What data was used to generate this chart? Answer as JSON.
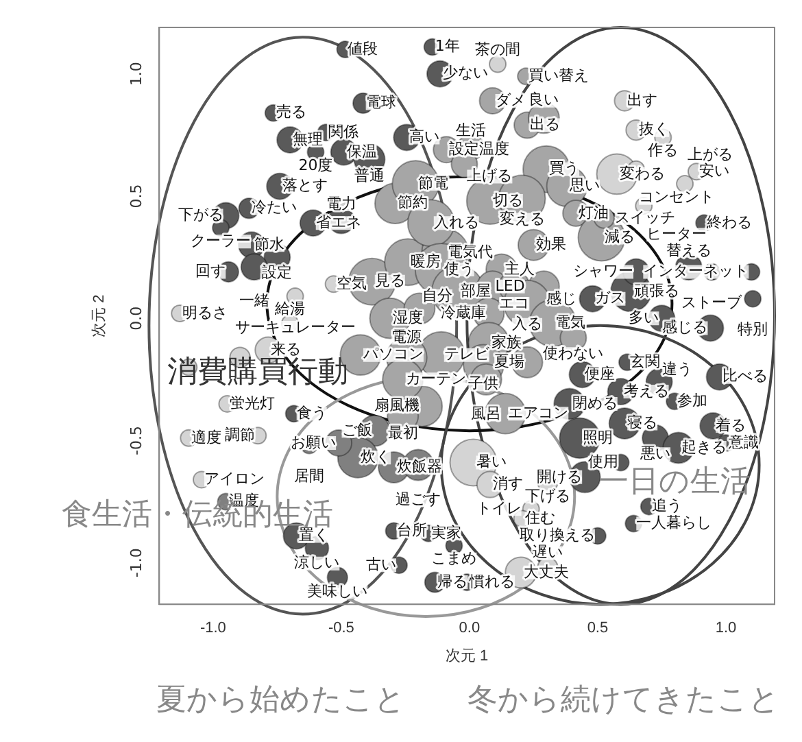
{
  "chart_data": {
    "type": "bubble",
    "xlabel": "次元 1",
    "ylabel": "次元 2",
    "xlim": [
      -1.21,
      1.19
    ],
    "ylim": [
      -1.17,
      1.19
    ],
    "xticks": [
      {
        "value": -1,
        "label": "-1.0"
      },
      {
        "value": -0.5,
        "label": "-0.5"
      },
      {
        "value": 0,
        "label": "0.0"
      },
      {
        "value": 0.5,
        "label": "0.5"
      },
      {
        "value": 1,
        "label": "1.0"
      }
    ],
    "yticks": [
      {
        "value": -1,
        "label": "-1.0"
      },
      {
        "value": -0.5,
        "label": "-0.5"
      },
      {
        "value": 0,
        "label": "0.0"
      },
      {
        "value": 0.5,
        "label": "0.5"
      },
      {
        "value": 1,
        "label": "1.0"
      }
    ],
    "annotations": [
      "消費購買行動",
      "食生活・伝統的生活",
      "一日の生活",
      "夏から始めたこと",
      "冬から続けてきたこと",
      {
        "text": "値段",
        "x": -0.485,
        "y": 1.1
      },
      {
        "text": "売る",
        "x": -0.765,
        "y": 0.84
      },
      {
        "text": "電球",
        "x": -0.415,
        "y": 0.88
      },
      {
        "text": "無理",
        "x": -0.7,
        "y": 0.73
      },
      {
        "text": "関係",
        "x": -0.56,
        "y": 0.76
      },
      {
        "text": "高い",
        "x": -0.245,
        "y": 0.74
      },
      {
        "text": "20度",
        "x": -0.6,
        "y": 0.68
      },
      {
        "text": "保温",
        "x": -0.49,
        "y": 0.68
      },
      {
        "text": "普通",
        "x": -0.39,
        "y": 0.65
      },
      {
        "text": "落とす",
        "x": -0.74,
        "y": 0.54
      },
      {
        "text": "冷たい",
        "x": -0.86,
        "y": 0.45
      },
      {
        "text": "下がる",
        "x": -0.95,
        "y": 0.42
      },
      {
        "text": "クーラー",
        "x": -0.97,
        "y": 0.37
      },
      {
        "text": "省エネ",
        "x": -0.61,
        "y": 0.39
      },
      {
        "text": "電力",
        "x": -0.5,
        "y": 0.4
      },
      {
        "text": "節水",
        "x": -0.85,
        "y": 0.3
      },
      {
        "text": "設定",
        "x": -0.75,
        "y": 0.25
      },
      {
        "text": "回す",
        "x": -0.94,
        "y": 0.19
      },
      {
        "text": "一緒",
        "x": -0.84,
        "y": 0.21
      },
      {
        "text": "1年",
        "x": -0.145,
        "y": 1.11
      },
      {
        "text": "少ない",
        "x": -0.115,
        "y": 1.0
      },
      {
        "text": "終わる",
        "x": 0.915,
        "y": 0.39
      },
      {
        "text": "インターネット",
        "x": 1.1,
        "y": 0.19
      },
      {
        "text": "替える",
        "x": 0.855,
        "y": 0.21
      },
      {
        "text": "ストーブ",
        "x": 0.945,
        "y": 0.19
      },
      {
        "text": "特別",
        "x": 1.105,
        "y": 0.08
      },
      {
        "text": "頑張る",
        "x": 0.63,
        "y": 0.11
      },
      {
        "text": "ガス",
        "x": 0.48,
        "y": 0.08
      },
      {
        "text": "シャワー",
        "x": 0.65,
        "y": 0.19
      },
      {
        "text": "多い",
        "x": 0.75,
        "y": 0.0
      },
      {
        "text": "感じる",
        "x": 0.94,
        "y": -0.04
      },
      {
        "text": "便座",
        "x": 0.44,
        "y": -0.23
      },
      {
        "text": "玄関",
        "x": 0.615,
        "y": -0.18
      },
      {
        "text": "考える",
        "x": 0.59,
        "y": -0.3
      },
      {
        "text": "違う",
        "x": 0.74,
        "y": -0.26
      },
      {
        "text": "比べる",
        "x": 0.975,
        "y": -0.24
      },
      {
        "text": "閉める",
        "x": 0.39,
        "y": -0.35
      },
      {
        "text": "寝る",
        "x": 0.605,
        "y": -0.43
      },
      {
        "text": "参加",
        "x": 0.8,
        "y": -0.34
      },
      {
        "text": "照明",
        "x": 0.43,
        "y": -0.49
      },
      {
        "text": "悪い",
        "x": 0.725,
        "y": -0.49
      },
      {
        "text": "着る",
        "x": 0.95,
        "y": -0.44
      },
      {
        "text": "起きる",
        "x": 0.815,
        "y": -0.53
      },
      {
        "text": "意識",
        "x": 1.0,
        "y": -0.51
      },
      {
        "text": "使用",
        "x": 0.59,
        "y": -0.59
      },
      {
        "text": "開ける",
        "x": 0.45,
        "y": -0.65
      },
      {
        "text": "追う",
        "x": 0.7,
        "y": -0.77
      },
      {
        "text": "一人暮らし",
        "x": 0.64,
        "y": -0.84
      },
      {
        "text": "取り換える",
        "x": 0.5,
        "y": -0.89
      },
      {
        "text": "実家",
        "x": -0.16,
        "y": -0.88
      },
      {
        "text": "こまめ",
        "x": -0.06,
        "y": -0.93
      },
      {
        "text": "古い",
        "x": -0.275,
        "y": -1.01
      },
      {
        "text": "帰る",
        "x": -0.135,
        "y": -1.08
      },
      {
        "text": "慣れる",
        "x": -0.01,
        "y": -1.08
      },
      {
        "text": "食う",
        "x": -0.685,
        "y": -0.39
      },
      {
        "text": "置く",
        "x": -0.675,
        "y": -0.89
      },
      {
        "text": "涼しい",
        "x": -0.595,
        "y": -0.94
      },
      {
        "text": "美味しい",
        "x": -0.515,
        "y": -1.06
      },
      {
        "text": "台所",
        "x": -0.295,
        "y": -0.87
      },
      {
        "text": "節約",
        "x": -0.29,
        "y": 0.47
      },
      {
        "text": "見る",
        "x": -0.38,
        "y": 0.15
      },
      {
        "text": "暖房",
        "x": -0.24,
        "y": 0.23
      },
      {
        "text": "湿度",
        "x": -0.31,
        "y": 0.0
      },
      {
        "text": "節電",
        "x": -0.21,
        "y": 0.55
      },
      {
        "text": "買い替え",
        "x": 0.22,
        "y": 0.99
      },
      {
        "text": "ダメ",
        "x": 0.09,
        "y": 0.89
      },
      {
        "text": "出る",
        "x": 0.225,
        "y": 0.79
      },
      {
        "text": "良い",
        "x": 0.29,
        "y": 0.82
      },
      {
        "text": "設定温度",
        "x": -0.09,
        "y": 0.69
      },
      {
        "text": "生活",
        "x": 0.005,
        "y": 0.7
      },
      {
        "text": "上げる",
        "x": -0.02,
        "y": 0.63
      },
      {
        "text": "買う",
        "x": 0.3,
        "y": 0.61
      },
      {
        "text": "思い",
        "x": 0.38,
        "y": 0.54
      },
      {
        "text": "切る",
        "x": 0.08,
        "y": 0.48
      },
      {
        "text": "変える",
        "x": 0.205,
        "y": 0.49
      },
      {
        "text": "灯油",
        "x": 0.415,
        "y": 0.43
      },
      {
        "text": "減る",
        "x": 0.515,
        "y": 0.33
      },
      {
        "text": "スイッチ",
        "x": 0.525,
        "y": 0.41
      },
      {
        "text": "効果",
        "x": 0.25,
        "y": 0.3
      },
      {
        "text": "電気代",
        "x": -0.095,
        "y": 0.27
      },
      {
        "text": "入れる",
        "x": -0.15,
        "y": 0.39
      },
      {
        "text": "使う",
        "x": -0.11,
        "y": 0.2
      },
      {
        "text": "主人",
        "x": 0.125,
        "y": 0.2
      },
      {
        "text": "部屋",
        "x": -0.045,
        "y": 0.11
      },
      {
        "text": "LED",
        "x": 0.09,
        "y": 0.13
      },
      {
        "text": "エコ",
        "x": 0.175,
        "y": 0.13
      },
      {
        "text": "感じ",
        "x": 0.29,
        "y": 0.13
      },
      {
        "text": "入る",
        "x": 0.225,
        "y": 0.06
      },
      {
        "text": "自分",
        "x": -0.195,
        "y": 0.04
      },
      {
        "text": "冷蔵庫",
        "x": 0.075,
        "y": 0.02
      },
      {
        "text": "電気",
        "x": 0.325,
        "y": -0.02
      },
      {
        "text": "使わない",
        "x": 0.405,
        "y": -0.08
      },
      {
        "text": "家族",
        "x": 0.075,
        "y": -0.1
      },
      {
        "text": "テレビ",
        "x": -0.11,
        "y": -0.15
      },
      {
        "text": "子供",
        "x": 0.055,
        "y": -0.19
      },
      {
        "text": "夏場",
        "x": 0.225,
        "y": -0.18
      },
      {
        "text": "風呂",
        "x": 0.065,
        "y": -0.25
      },
      {
        "text": "扇風機",
        "x": -0.185,
        "y": -0.36
      },
      {
        "text": "最初",
        "x": -0.26,
        "y": -0.4
      },
      {
        "text": "エアコン",
        "x": 0.14,
        "y": -0.39
      },
      {
        "text": "パソコン",
        "x": -0.425,
        "y": -0.15
      },
      {
        "text": "電源",
        "x": -0.245,
        "y": -0.16
      },
      {
        "text": "カーテン",
        "x": -0.26,
        "y": -0.25
      },
      {
        "text": "ご飯",
        "x": -0.37,
        "y": -0.46
      },
      {
        "text": "炊く",
        "x": -0.435,
        "y": -0.57
      },
      {
        "text": "炊飯器",
        "x": -0.295,
        "y": -0.61
      },
      {
        "text": "お願い",
        "x": -0.51,
        "y": -0.51
      },
      {
        "text": "居間",
        "x": -0.625,
        "y": -0.52
      },
      {
        "text": "過ごす",
        "x": -0.2,
        "y": -0.6
      },
      {
        "text": "温度",
        "x": -0.95,
        "y": -0.75
      },
      {
        "text": "茶の間",
        "x": 0.11,
        "y": 1.04
      },
      {
        "text": "出す",
        "x": 0.605,
        "y": 0.89
      },
      {
        "text": "抜く",
        "x": 0.65,
        "y": 0.77
      },
      {
        "text": "作る",
        "x": 0.755,
        "y": 0.74
      },
      {
        "text": "変わる",
        "x": 0.575,
        "y": 0.59
      },
      {
        "text": "コンセント",
        "x": 0.65,
        "y": 0.61
      },
      {
        "text": "安い",
        "x": 0.885,
        "y": 0.6
      },
      {
        "text": "上がる",
        "x": 0.84,
        "y": 0.55
      },
      {
        "text": "ヒーター",
        "x": 0.68,
        "y": 0.46
      },
      {
        "text": "空気",
        "x": -0.53,
        "y": 0.14
      },
      {
        "text": "サーキュレーター",
        "x": -0.68,
        "y": 0.09
      },
      {
        "text": "明るさ",
        "x": -1.13,
        "y": 0.02
      },
      {
        "text": "給湯",
        "x": -0.7,
        "y": -0.02
      },
      {
        "text": "来る",
        "x": -0.785,
        "y": -0.13
      },
      {
        "text": "蛍光灯",
        "x": -0.945,
        "y": -0.35
      },
      {
        "text": "調節",
        "x": -0.825,
        "y": -0.48
      },
      {
        "text": "適度",
        "x": -1.095,
        "y": -0.49
      },
      {
        "text": "アイロン",
        "x": -1.045,
        "y": -0.66
      },
      {
        "text": "暑い",
        "x": 0.015,
        "y": -0.59
      },
      {
        "text": "消す",
        "x": 0.08,
        "y": -0.68
      },
      {
        "text": "下げる",
        "x": 0.305,
        "y": -0.67
      },
      {
        "text": "トイレ",
        "x": 0.24,
        "y": -0.78
      },
      {
        "text": "住む",
        "x": 0.205,
        "y": -0.82
      },
      {
        "text": "大丈夫",
        "x": 0.2,
        "y": -1.04
      },
      {
        "text": "遅い",
        "x": 0.305,
        "y": -1.02
      }
    ],
    "series": [
      {
        "color": "#5a5a5a",
        "x": [
          -0.485,
          -0.765,
          -0.415,
          -0.7,
          -0.56,
          -0.245,
          -0.6,
          -0.49,
          -0.39,
          -0.74,
          -0.86,
          -0.95,
          -0.97,
          -0.61,
          -0.5,
          -0.85,
          -0.75,
          -0.94,
          -0.84,
          -0.145,
          -0.115,
          0.915,
          1.1,
          0.855,
          0.945,
          1.105,
          0.63,
          0.48,
          0.65,
          0.75,
          0.94,
          0.44,
          0.615,
          0.59,
          0.74,
          0.975,
          0.39,
          0.605,
          0.8,
          0.43,
          0.725,
          0.95,
          0.815,
          1.0,
          0.59,
          0.45,
          0.7,
          0.64,
          0.5,
          -0.16,
          -0.06,
          -0.275,
          -0.135,
          -0.01,
          -0.685,
          -0.675,
          -0.595,
          -0.515,
          -0.295
        ],
        "values": [
          1.1,
          0.84,
          0.88,
          0.73,
          0.76,
          0.74,
          0.68,
          0.68,
          0.65,
          0.54,
          0.45,
          0.42,
          0.37,
          0.39,
          0.4,
          0.3,
          0.25,
          0.19,
          0.21,
          1.11,
          1.0,
          0.39,
          0.19,
          0.21,
          0.19,
          0.08,
          0.11,
          0.08,
          0.19,
          0.0,
          -0.04,
          -0.23,
          -0.18,
          -0.3,
          -0.26,
          -0.24,
          -0.35,
          -0.43,
          -0.34,
          -0.49,
          -0.49,
          -0.44,
          -0.53,
          -0.51,
          -0.59,
          -0.65,
          -0.77,
          -0.84,
          -0.89,
          -0.88,
          -0.93,
          -1.01,
          -1.08,
          -1.08,
          -0.39,
          -0.89,
          -0.94,
          -1.06,
          -0.87
        ],
        "sizes": [
          0.1,
          0.1,
          0.15,
          0.25,
          0.1,
          0.25,
          0.1,
          0.25,
          0.35,
          0.25,
          0.15,
          0.25,
          0.1,
          0.25,
          0.25,
          0.25,
          0.25,
          0.15,
          0.25,
          0.1,
          0.25,
          0.1,
          0.1,
          0.25,
          0.1,
          0.1,
          0.6,
          0.25,
          0.25,
          0.25,
          0.25,
          0.25,
          0.1,
          0.25,
          0.25,
          0.25,
          0.35,
          0.35,
          0.1,
          0.6,
          0.25,
          0.25,
          0.35,
          0.1,
          0.1,
          0.35,
          0.1,
          0.1,
          0.1,
          0.1,
          0.1,
          0.1,
          0.15,
          0.1,
          0.1,
          0.25,
          0.2,
          0.15,
          0.1
        ]
      },
      {
        "color": "#a6a6a6",
        "x": [
          -0.29,
          -0.38,
          -0.24,
          -0.31,
          -0.21,
          0.22,
          0.09,
          0.225,
          0.29,
          -0.09,
          0.005,
          -0.02,
          0.3,
          0.38,
          0.08,
          0.205,
          0.415,
          0.515,
          0.525,
          0.25,
          -0.095,
          -0.15,
          -0.11,
          0.125,
          -0.045,
          0.09,
          0.175,
          0.29,
          0.225,
          -0.195,
          0.075,
          0.325,
          0.405,
          0.075,
          -0.11,
          0.055,
          0.225,
          0.065,
          -0.185,
          -0.26,
          0.14,
          -0.425,
          -0.245,
          -0.26
        ],
        "values": [
          0.47,
          0.15,
          0.23,
          0.0,
          0.55,
          0.99,
          0.89,
          0.79,
          0.82,
          0.69,
          0.7,
          0.63,
          0.61,
          0.54,
          0.48,
          0.49,
          0.43,
          0.33,
          0.41,
          0.3,
          0.27,
          0.39,
          0.2,
          0.2,
          0.11,
          0.13,
          0.13,
          0.13,
          0.06,
          0.04,
          0.02,
          -0.02,
          -0.08,
          -0.1,
          -0.15,
          -0.19,
          -0.18,
          -0.25,
          -0.36,
          -0.4,
          -0.39,
          -0.15,
          -0.16,
          -0.25
        ],
        "sizes": [
          0.6,
          0.8,
          0.8,
          0.6,
          0.8,
          0.1,
          0.25,
          0.25,
          0.35,
          0.25,
          0.25,
          0.25,
          0.8,
          0.6,
          0.8,
          0.8,
          0.25,
          0.8,
          0.15,
          0.35,
          0.8,
          0.8,
          1,
          0.35,
          1,
          0.35,
          0.35,
          0.35,
          0.8,
          0.35,
          0.35,
          0.8,
          0.25,
          0.6,
          0.8,
          0.6,
          0.35,
          0.35,
          0.6,
          0.35,
          0.6,
          0.6,
          0.6,
          0.6
        ]
      },
      {
        "color": "#808080",
        "x": [
          -0.37,
          -0.435,
          -0.295,
          -0.51,
          -0.625,
          -0.2,
          -0.95
        ],
        "values": [
          -0.46,
          -0.57,
          -0.61,
          -0.51,
          -0.52,
          -0.6,
          -0.75
        ],
        "sizes": [
          0.35,
          0.6,
          0.35,
          0.25,
          0.1,
          0.35,
          0.1
        ]
      },
      {
        "color": "#d4d4d4",
        "x": [
          0.11,
          0.605,
          0.65,
          0.755,
          0.575,
          0.65,
          0.885,
          0.84,
          0.68,
          -0.53,
          -0.68,
          -1.13,
          -0.7,
          -0.785,
          -0.895,
          -1.095,
          -0.945,
          -0.825,
          -1.095,
          -1.045,
          0.015,
          0.08,
          0.305,
          0.24,
          0.205,
          0.2,
          0.305
        ],
        "values": [
          1.04,
          0.89,
          0.77,
          0.74,
          0.59,
          0.61,
          0.6,
          0.55,
          0.46,
          0.14,
          0.09,
          0.02,
          -0.02,
          -0.13,
          -0.16,
          -0.2,
          -0.35,
          -0.48,
          -0.49,
          -0.66,
          -0.59,
          -0.68,
          -0.67,
          -0.78,
          -0.82,
          -1.04,
          -1.02
        ],
        "sizes": [
          0.1,
          0.15,
          0.15,
          0.1,
          0.6,
          0.1,
          0.1,
          0.1,
          0.1,
          0.1,
          0.1,
          0.1,
          0.1,
          0.25,
          0.15,
          0.1,
          0.1,
          0.1,
          0.1,
          0.1,
          0.8,
          0.25,
          0.15,
          0.1,
          0.1,
          0.35,
          0.15
        ]
      }
    ]
  }
}
